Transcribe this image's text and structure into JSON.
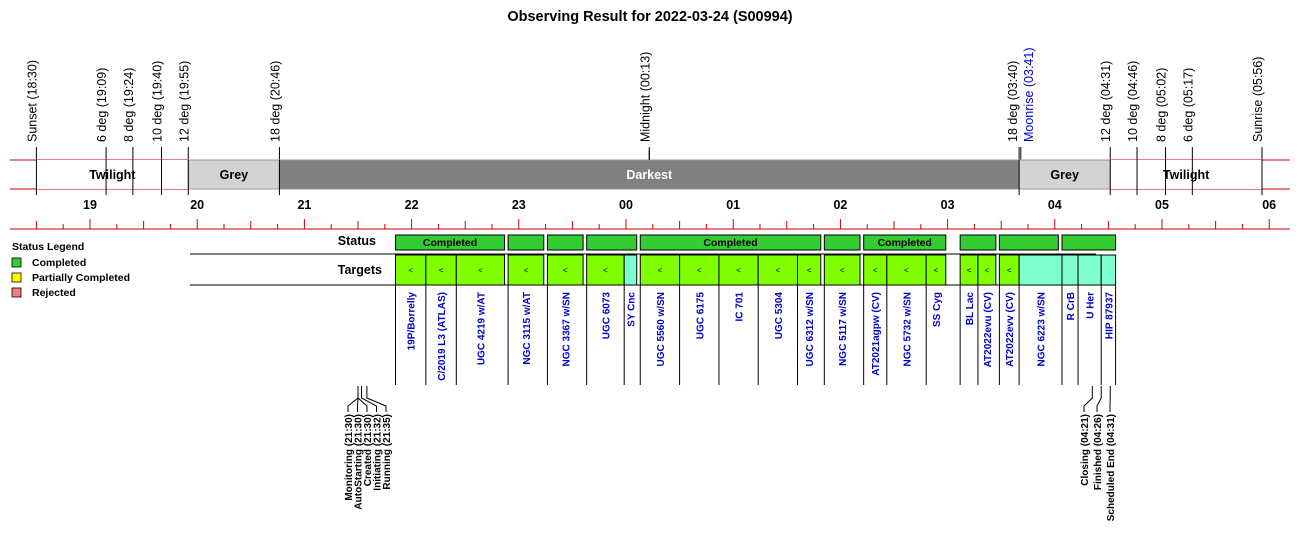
{
  "chart_data": {
    "type": "timeline",
    "title": "Observing Result for 2022-03-24 (S00994)",
    "twilight_events": [
      {
        "label": "Sunset (18:30)",
        "time": 18.5,
        "color": "#000000"
      },
      {
        "label": "6 deg (19:09)",
        "time": 19.15,
        "color": "#000000"
      },
      {
        "label": "8 deg (19:24)",
        "time": 19.4,
        "color": "#000000"
      },
      {
        "label": "10 deg (19:40)",
        "time": 19.667,
        "color": "#000000"
      },
      {
        "label": "12 deg (19:55)",
        "time": 19.917,
        "color": "#000000"
      },
      {
        "label": "18 deg (20:46)",
        "time": 20.767,
        "color": "#000000"
      },
      {
        "label": "Midnight (00:13)",
        "time": 24.217,
        "color": "#000000"
      },
      {
        "label": "18 deg (03:40)",
        "time": 27.667,
        "color": "#000000"
      },
      {
        "label": "Moonrise (03:41)",
        "time": 27.683,
        "color": "#0000cc"
      },
      {
        "label": "12 deg (04:31)",
        "time": 28.517,
        "color": "#000000"
      },
      {
        "label": "10 deg (04:46)",
        "time": 28.767,
        "color": "#000000"
      },
      {
        "label": "8 deg (05:02)",
        "time": 29.033,
        "color": "#000000"
      },
      {
        "label": "6 deg (05:17)",
        "time": 29.283,
        "color": "#000000"
      },
      {
        "label": "Sunrise (05:56)",
        "time": 29.933,
        "color": "#000000"
      }
    ],
    "sky_bands": [
      {
        "label": "Twilight",
        "start": 18.5,
        "end": 19.917,
        "color": "#ffffff",
        "text_color": "#000000"
      },
      {
        "label": "Grey",
        "start": 19.917,
        "end": 20.767,
        "color": "#d3d3d3",
        "text_color": "#000000"
      },
      {
        "label": "Darkest",
        "start": 20.767,
        "end": 27.667,
        "color": "#808080",
        "text_color": "#ffffff"
      },
      {
        "label": "Grey",
        "start": 27.667,
        "end": 28.517,
        "color": "#d3d3d3",
        "text_color": "#000000"
      },
      {
        "label": "Twilight",
        "start": 28.517,
        "end": 29.933,
        "color": "#ffffff",
        "text_color": "#000000"
      }
    ],
    "hour_ticks": [
      "19",
      "20",
      "21",
      "22",
      "23",
      "00",
      "01",
      "02",
      "03",
      "04",
      "05",
      "06"
    ],
    "status_row_label": "Status",
    "targets_row_label": "Targets",
    "legend": {
      "title": "Status Legend",
      "entries": [
        {
          "label": "Completed",
          "color": "#33cc33"
        },
        {
          "label": "Partially Completed",
          "color": "#ffff00"
        },
        {
          "label": "Rejected",
          "color": "#f08080"
        }
      ]
    },
    "status_blocks": [
      {
        "start": 21.85,
        "end": 22.867,
        "label": "Completed",
        "color": "#33cc33"
      },
      {
        "start": 22.9,
        "end": 23.233,
        "label": "",
        "color": "#33cc33"
      },
      {
        "start": 23.267,
        "end": 23.6,
        "label": "",
        "color": "#33cc33"
      },
      {
        "start": 23.633,
        "end": 24.1,
        "label": "",
        "color": "#33cc33"
      },
      {
        "start": 24.133,
        "end": 25.817,
        "label": "Completed",
        "color": "#33cc33"
      },
      {
        "start": 25.85,
        "end": 26.183,
        "label": "",
        "color": "#33cc33"
      },
      {
        "start": 26.217,
        "end": 26.983,
        "label": "Completed",
        "color": "#33cc33"
      },
      {
        "start": 27.117,
        "end": 27.45,
        "label": "",
        "color": "#33cc33"
      },
      {
        "start": 27.483,
        "end": 28.033,
        "label": "",
        "color": "#33cc33"
      },
      {
        "start": 28.067,
        "end": 28.567,
        "label": "",
        "color": "#33cc33"
      }
    ],
    "targets": [
      {
        "name": "19P/Borrelly",
        "start": 21.85,
        "end": 22.133,
        "color": "#80ff00",
        "mark": "<"
      },
      {
        "name": "C/2019 L3 (ATLAS)",
        "start": 22.133,
        "end": 22.417,
        "color": "#80ff00",
        "mark": "<"
      },
      {
        "name": "UGC 4219 w/AT",
        "start": 22.417,
        "end": 22.867,
        "color": "#80ff00",
        "mark": "<"
      },
      {
        "name": "NGC 3115 w/AT",
        "start": 22.9,
        "end": 23.233,
        "color": "#80ff00",
        "mark": "<"
      },
      {
        "name": "NGC 3367 w/SN",
        "start": 23.267,
        "end": 23.6,
        "color": "#80ff00",
        "mark": "<"
      },
      {
        "name": "UGC 6073",
        "start": 23.633,
        "end": 23.983,
        "color": "#80ff00",
        "mark": "<"
      },
      {
        "name": "SY Cnc",
        "start": 23.983,
        "end": 24.1,
        "color": "#80ffd0",
        "mark": ""
      },
      {
        "name": "UGC 5560 w/SN",
        "start": 24.133,
        "end": 24.5,
        "color": "#80ff00",
        "mark": "<"
      },
      {
        "name": "UGC 6175",
        "start": 24.5,
        "end": 24.867,
        "color": "#80ff00",
        "mark": "<"
      },
      {
        "name": "IC 701",
        "start": 24.867,
        "end": 25.233,
        "color": "#80ff00",
        "mark": "<"
      },
      {
        "name": "UGC 5304",
        "start": 25.233,
        "end": 25.6,
        "color": "#80ff00",
        "mark": "<"
      },
      {
        "name": "UGC 6312 w/SN",
        "start": 25.6,
        "end": 25.817,
        "color": "#80ff00",
        "mark": "<"
      },
      {
        "name": "NGC 5117 w/SN",
        "start": 25.85,
        "end": 26.183,
        "color": "#80ff00",
        "mark": "<"
      },
      {
        "name": "AT2021agpw (CV)",
        "start": 26.217,
        "end": 26.433,
        "color": "#80ff00",
        "mark": "<"
      },
      {
        "name": "NGC 5732 w/SN",
        "start": 26.433,
        "end": 26.8,
        "color": "#80ff00",
        "mark": "<"
      },
      {
        "name": "SS Cyg",
        "start": 26.8,
        "end": 26.983,
        "color": "#80ff00",
        "mark": "<"
      },
      {
        "name": "BL Lac",
        "start": 27.117,
        "end": 27.283,
        "color": "#80ff00",
        "mark": "<"
      },
      {
        "name": "AT2022evu (CV)",
        "start": 27.283,
        "end": 27.45,
        "color": "#80ff00",
        "mark": "<"
      },
      {
        "name": "AT2022evv (CV)",
        "start": 27.483,
        "end": 27.667,
        "color": "#80ff00",
        "mark": "<"
      },
      {
        "name": "NGC 6223 w/SN",
        "start": 27.667,
        "end": 28.067,
        "color": "#80ffd0",
        "mark": ""
      },
      {
        "name": "R CrB",
        "start": 28.067,
        "end": 28.217,
        "color": "#80ffd0",
        "mark": ""
      },
      {
        "name": "U Her",
        "start": 28.217,
        "end": 28.433,
        "color": "#80ffd0",
        "mark": ""
      },
      {
        "name": "HIP 87937",
        "start": 28.433,
        "end": 28.567,
        "color": "#80ffd0",
        "mark": ""
      }
    ],
    "events": [
      {
        "label": "Monitoring (21:30)",
        "time": 21.5
      },
      {
        "label": "AutoStarting (21:30)",
        "time": 21.5
      },
      {
        "label": "Created (21:30)",
        "time": 21.5
      },
      {
        "label": "Initiating (21:32)",
        "time": 21.533
      },
      {
        "label": "Running (21:35)",
        "time": 21.583
      },
      {
        "label": "Closing (04:21)",
        "time": 28.35
      },
      {
        "label": "Finished (04:26)",
        "time": 28.433
      },
      {
        "label": "Scheduled End (04:31)",
        "time": 28.517
      }
    ]
  }
}
